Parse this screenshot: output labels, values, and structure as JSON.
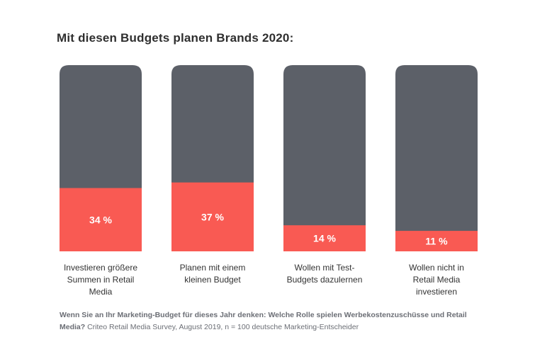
{
  "chart_data": {
    "type": "bar",
    "stacked_to_100": true,
    "title": "Mit diesen Budgets planen Brands 2020:",
    "categories": [
      "Investieren größere Summen in Retail Media",
      "Planen mit einem kleinen Budget",
      "Wollen mit Test-Budgets dazulernen",
      "Wollen nicht in Retail Media investieren"
    ],
    "category_lines": [
      [
        "Investieren größere",
        "Summen in Retail",
        "Media"
      ],
      [
        "Planen mit einem",
        "kleinen Budget"
      ],
      [
        "Wollen mit Test-",
        "Budgets dazulernen"
      ],
      [
        "Wollen nicht in",
        "Retail Media",
        "investieren"
      ]
    ],
    "values": [
      34,
      37,
      14,
      11
    ],
    "value_labels": [
      "34 %",
      "37 %",
      "14 %",
      "11 %"
    ],
    "ylim": [
      0,
      100
    ],
    "colors": {
      "value": "#f95a53",
      "background": "#5c6068"
    }
  },
  "footnote": {
    "question": "Wenn Sie an Ihr Marketing-Budget für dieses Jahr denken: Welche Rolle spielen Werbekostenzuschüsse und Retail Media?",
    "source": " Criteo Retail Media Survey, August 2019, n = 100 deutsche Marketing-Entscheider"
  }
}
